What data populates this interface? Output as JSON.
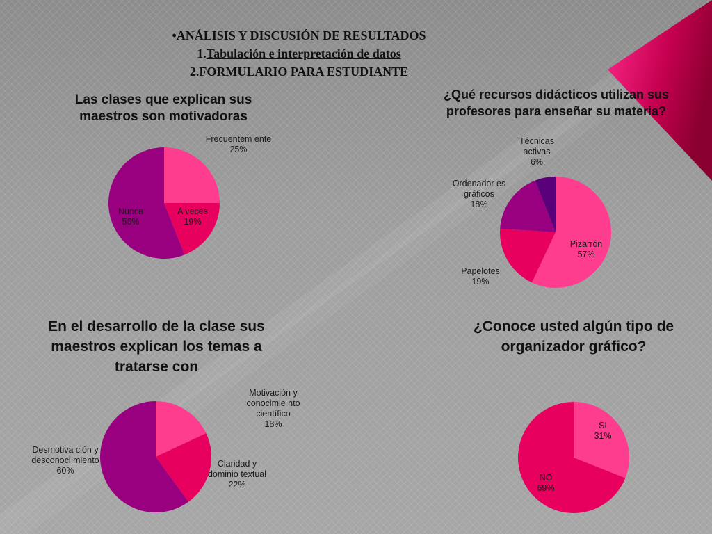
{
  "header": {
    "bullet": "•ANÁLISIS Y DISCUSIÓN DE RESULTADOS",
    "line2_prefix": "1.",
    "line2_underlined": "Tabulación e interpretación de datos",
    "line3": "2.FORMULARIO PARA ESTUDIANTE"
  },
  "chart_data": [
    {
      "type": "pie",
      "title": "Las clases que explican sus maestros son motivadoras",
      "slices": [
        {
          "label": "Frecuentem ente",
          "value": 25,
          "display": "25%",
          "color": "#ff3d8f"
        },
        {
          "label": "A veces",
          "value": 19,
          "display": "19%",
          "color": "#e8005f"
        },
        {
          "label": "Nunca",
          "value": 56,
          "display": "56%",
          "color": "#990080"
        }
      ]
    },
    {
      "type": "pie",
      "title": "¿Qué recursos didácticos utilizan sus profesores para enseñar su materia?",
      "slices": [
        {
          "label": "Pizarrón",
          "value": 57,
          "display": "57%",
          "color": "#ff3d8f"
        },
        {
          "label": "Papelotes",
          "value": 19,
          "display": "19%",
          "color": "#e8005f"
        },
        {
          "label": "Ordenador es gráficos",
          "value": 18,
          "display": "18%",
          "color": "#990080"
        },
        {
          "label": "Técnicas activas",
          "value": 6,
          "display": "6%",
          "color": "#5a007a"
        }
      ]
    },
    {
      "type": "pie",
      "title": "En el desarrollo de la clase sus maestros explican los temas a tratarse con",
      "slices": [
        {
          "label": "Motivación y conocimie nto científico",
          "value": 18,
          "display": "18%",
          "color": "#ff3d8f"
        },
        {
          "label": "Claridad y dominio textual",
          "value": 22,
          "display": "22%",
          "color": "#e8005f"
        },
        {
          "label": "Desmotiva ción y desconoci miento",
          "value": 60,
          "display": "60%",
          "color": "#990080"
        }
      ]
    },
    {
      "type": "pie",
      "title": "¿Conoce usted algún tipo de organizador gráfico?",
      "slices": [
        {
          "label": "SI",
          "value": 31,
          "display": "31%",
          "color": "#ff3d8f"
        },
        {
          "label": "NO",
          "value": 69,
          "display": "69%",
          "color": "#e8005f"
        }
      ]
    }
  ]
}
